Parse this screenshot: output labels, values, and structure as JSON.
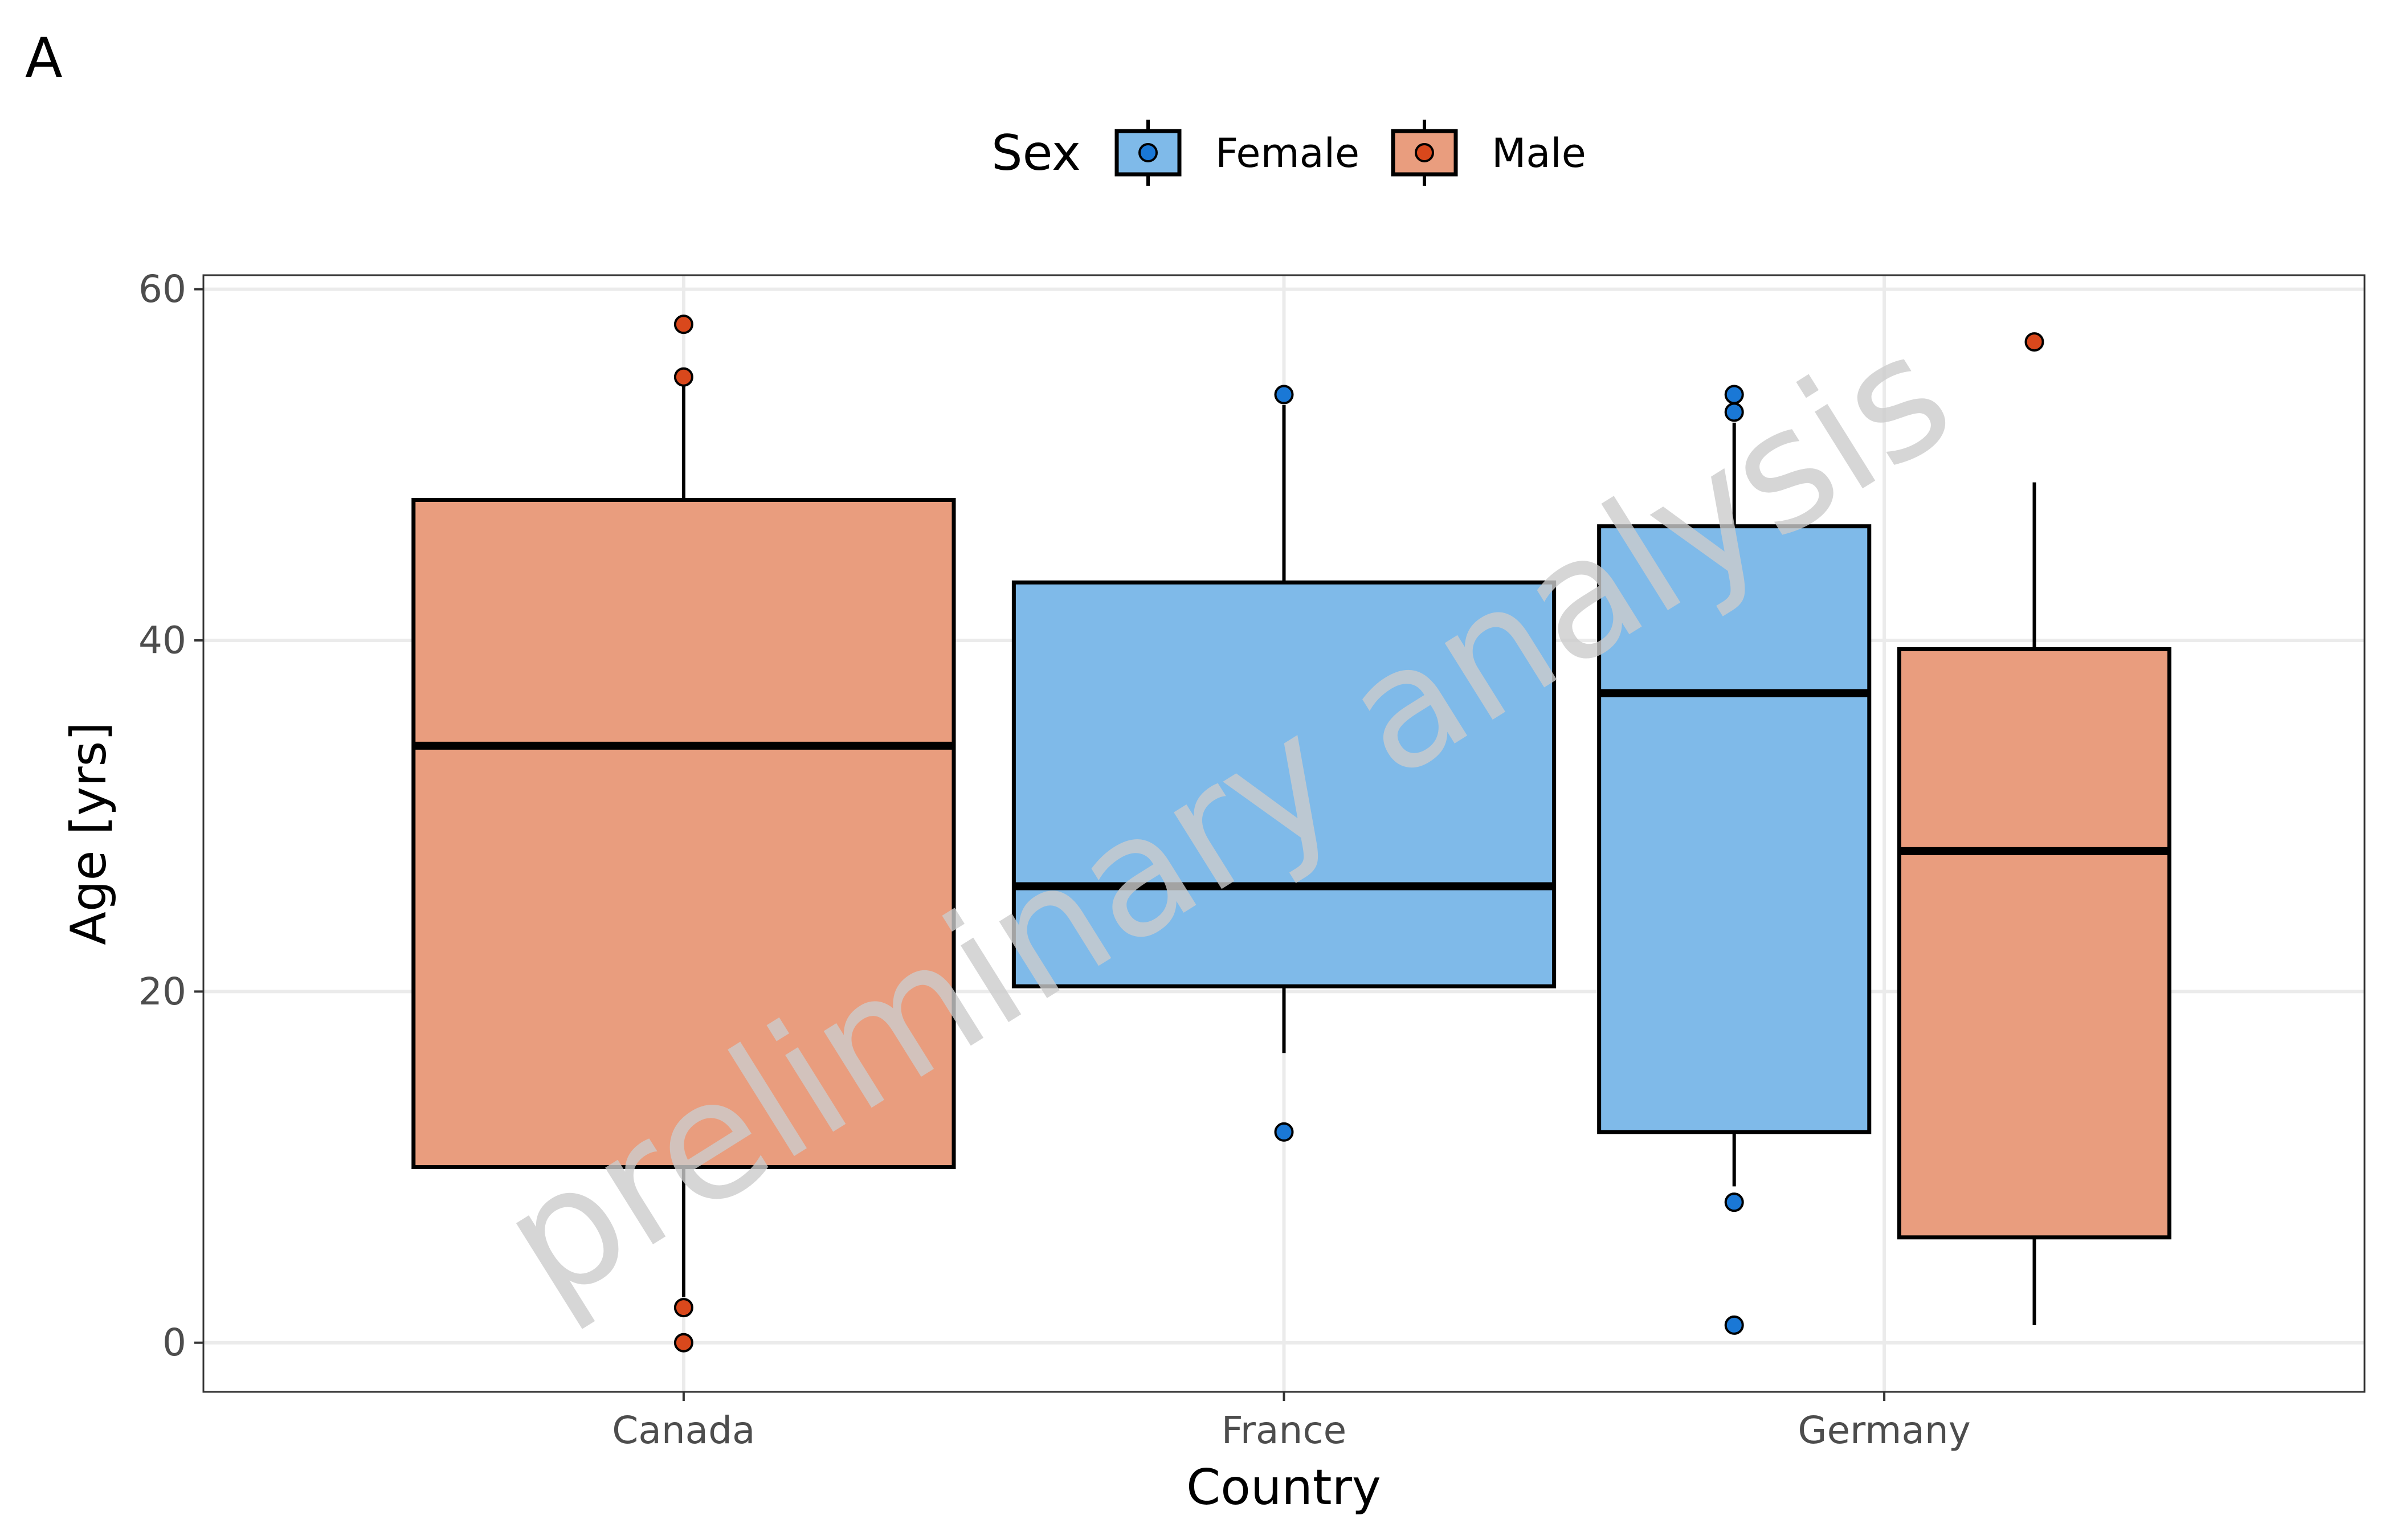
{
  "panel_tag": "A",
  "colors": {
    "Female_fill": "#7fbae9",
    "Female_point": "#1a78d6",
    "Male_fill": "#e99d7e",
    "Male_point": "#d9481c",
    "grid": "#ebebeb",
    "watermark": "#cccccc"
  },
  "watermark": "preliminary analysis",
  "chart_data": {
    "type": "boxplot",
    "xlabel": "Country",
    "ylabel": "Age [yrs]",
    "ylim": [
      -2.8,
      60.8
    ],
    "y_ticks": [
      0,
      20,
      40,
      60
    ],
    "categories": [
      "Canada",
      "France",
      "Germany"
    ],
    "grid": true,
    "legend": {
      "title": "Sex",
      "position": "top",
      "entries": [
        {
          "label": "Female",
          "color": "#7fbae9"
        },
        {
          "label": "Male",
          "color": "#e99d7e"
        }
      ]
    },
    "boxes": [
      {
        "category": "Canada",
        "group": "Male",
        "slot": "center",
        "q1": 10,
        "median": 34,
        "q3": 48,
        "whisker_low": 2.6,
        "whisker_high": 54.6,
        "outliers": [
          58,
          55,
          2,
          0
        ]
      },
      {
        "category": "France",
        "group": "Female",
        "slot": "center",
        "q1": 20.3,
        "median": 26,
        "q3": 43.3,
        "whisker_low": 16.5,
        "whisker_high": 53.4,
        "outliers": [
          54,
          12
        ]
      },
      {
        "category": "Germany",
        "group": "Female",
        "slot": "left",
        "q1": 12,
        "median": 37,
        "q3": 46.5,
        "whisker_low": 8.9,
        "whisker_high": 52.4,
        "outliers": [
          54,
          53,
          8,
          1
        ]
      },
      {
        "category": "Germany",
        "group": "Male",
        "slot": "right",
        "q1": 6,
        "median": 28,
        "q3": 39.5,
        "whisker_low": 1,
        "whisker_high": 49,
        "outliers": [
          57
        ]
      }
    ]
  }
}
